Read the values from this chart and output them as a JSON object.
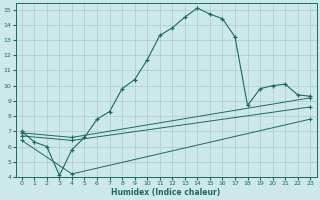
{
  "title": "",
  "xlabel": "Humidex (Indice chaleur)",
  "ylabel": "",
  "bg_color": "#cce8e8",
  "grid_color": "#aacccc",
  "line_color": "#1a6b5a",
  "xlim": [
    -0.5,
    23.5
  ],
  "ylim": [
    4,
    15.4
  ],
  "xticks": [
    0,
    1,
    2,
    3,
    4,
    5,
    6,
    7,
    8,
    9,
    10,
    11,
    12,
    13,
    14,
    15,
    16,
    17,
    18,
    19,
    20,
    21,
    22,
    23
  ],
  "yticks": [
    4,
    5,
    6,
    7,
    8,
    9,
    10,
    11,
    12,
    13,
    14,
    15
  ],
  "main_x": [
    0,
    1,
    2,
    3,
    4,
    5,
    6,
    7,
    8,
    9,
    10,
    11,
    12,
    13,
    14,
    15,
    16,
    17,
    18,
    19,
    20,
    21,
    22,
    23
  ],
  "main_y": [
    7.0,
    6.3,
    6.0,
    4.1,
    5.8,
    6.6,
    7.8,
    8.3,
    9.8,
    10.4,
    11.7,
    13.3,
    13.8,
    14.5,
    15.1,
    14.7,
    14.4,
    13.2,
    8.7,
    9.8,
    10.0,
    10.1,
    9.4,
    9.3
  ],
  "line2_x": [
    0,
    4,
    23
  ],
  "line2_y": [
    6.9,
    6.6,
    9.2
  ],
  "line3_x": [
    0,
    4,
    23
  ],
  "line3_y": [
    6.7,
    6.4,
    8.6
  ],
  "line4_x": [
    0,
    4,
    23
  ],
  "line4_y": [
    6.4,
    4.2,
    7.8
  ]
}
